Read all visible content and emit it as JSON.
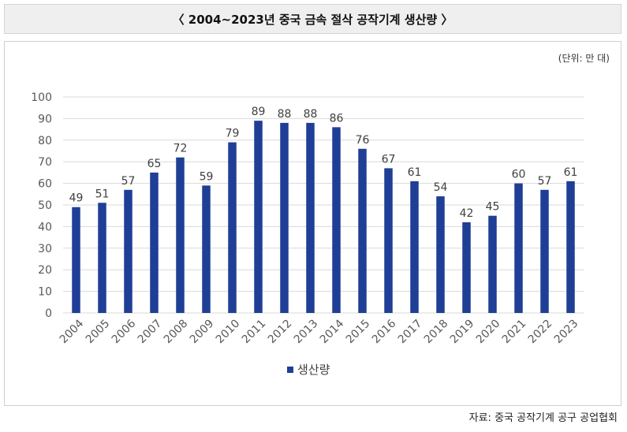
{
  "header": {
    "title": "〈 2004~2023년 중국 금속 절삭 공작기계 생산량 〉"
  },
  "unit_label": "(단위: 만 대)",
  "source": "자료: 중국 공작기계 공구 공업협회",
  "colors": {
    "bar": "#1f3e96",
    "grid": "#d9d9d9",
    "axis_text": "#595959"
  },
  "chart_data": {
    "type": "bar",
    "title": "2004~2023년 중국 금속 절삭 공작기계 생산량",
    "xlabel": "",
    "ylabel": "",
    "ylim": [
      0,
      100
    ],
    "yticks": [
      0,
      10,
      20,
      30,
      40,
      50,
      60,
      70,
      80,
      90,
      100
    ],
    "grid": true,
    "legend_position": "bottom",
    "categories": [
      "2004",
      "2005",
      "2006",
      "2007",
      "2008",
      "2009",
      "2010",
      "2011",
      "2012",
      "2013",
      "2014",
      "2015",
      "2016",
      "2017",
      "2018",
      "2019",
      "2020",
      "2021",
      "2022",
      "2023"
    ],
    "series": [
      {
        "name": "생산량",
        "values": [
          49,
          51,
          57,
          65,
          72,
          59,
          79,
          89,
          88,
          88,
          86,
          76,
          67,
          61,
          54,
          42,
          45,
          60,
          57,
          61
        ]
      }
    ]
  }
}
